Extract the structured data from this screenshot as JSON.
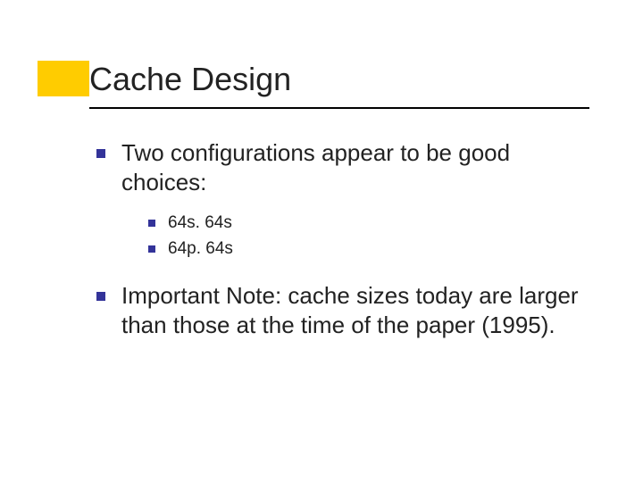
{
  "colors": {
    "accent": "#ffcc00",
    "bullet": "#333399",
    "text": "#222222",
    "underline": "#000000",
    "background": "#ffffff"
  },
  "typography": {
    "title_fontsize": 36,
    "level1_fontsize": 26,
    "level2_fontsize": 19,
    "font_family": "Verdana"
  },
  "title": "Cache Design",
  "bullets": [
    {
      "text": "Two configurations appear to be good choices:",
      "sub": [
        {
          "text": "64s. 64s"
        },
        {
          "text": "64p. 64s"
        }
      ]
    },
    {
      "text": "Important Note: cache sizes today are larger than those at the time of the paper (1995).",
      "sub": []
    }
  ]
}
